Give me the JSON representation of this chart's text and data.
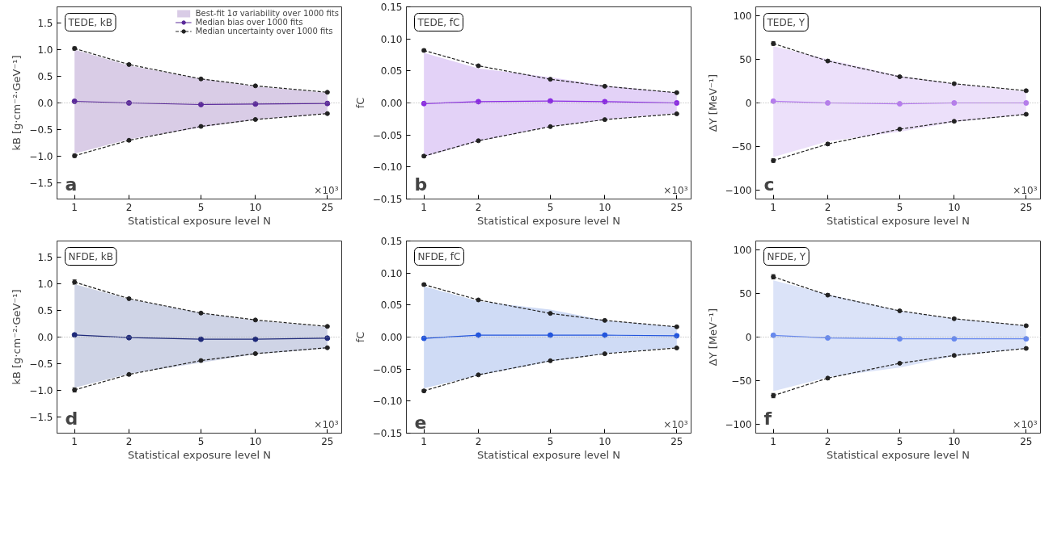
{
  "chart_data": [
    {
      "type": "line",
      "grid": false,
      "legend": "top right",
      "log": "x",
      "marker": "circle",
      "xlabel": "Statistical exposure level N",
      "ylabel": "kB [g·cm⁻²·GeV⁻¹]",
      "annotations": [
        "TEDE, kB",
        "a",
        "×10³"
      ],
      "x": [
        1,
        2,
        5,
        10,
        25
      ],
      "xlim": [
        0.8,
        30
      ],
      "xticks": [
        1,
        2,
        5,
        10,
        25
      ],
      "ylim": [
        -1.8,
        1.8
      ],
      "yticks": [
        {
          "value": -1.5,
          "label": "−1.5"
        },
        {
          "value": -1.0,
          "label": "−1.0"
        },
        {
          "value": -0.5,
          "label": "−0.5"
        },
        {
          "value": 0,
          "label": "0.0"
        },
        0.5,
        {
          "value": 1,
          "label": "1.0"
        },
        1.5
      ],
      "ref_lines": [
        {
          "axis": "y",
          "value": 0,
          "color": "#aaaaaa",
          "line_style": "dotted"
        }
      ],
      "series": [
        {
          "name": "Best-fit 1σ variability over 1000 fits",
          "type": "area",
          "color": "#d9cce6",
          "values": [
            null,
            null,
            null,
            null,
            null
          ],
          "lower": [
            -0.95,
            -0.68,
            -0.46,
            -0.31,
            -0.2
          ],
          "upper": [
            1.0,
            0.7,
            0.45,
            0.31,
            0.19
          ]
        },
        {
          "name": "Median bias over 1000 fits",
          "color": "#5b2a9a",
          "line_style": "solid",
          "values": [
            0.03,
            0.0,
            -0.03,
            -0.02,
            -0.01
          ]
        },
        {
          "name": "Median uncertainty over 1000 fits",
          "color": "#222222",
          "line_style": "dashed",
          "values": [
            1.02,
            0.72,
            0.45,
            0.32,
            0.2
          ],
          "errors": [
            0.03,
            0.02,
            0.01,
            0.01,
            0.01
          ]
        },
        {
          "color": "#222222",
          "line_style": "dashed",
          "values": [
            -0.99,
            -0.7,
            -0.44,
            -0.31,
            -0.2
          ],
          "errors": [
            0.03,
            0.02,
            0.01,
            0.01,
            0.01
          ]
        }
      ]
    },
    {
      "type": "line",
      "grid": false,
      "log": "x",
      "marker": "circle",
      "xlabel": "Statistical exposure level N",
      "ylabel": "fC",
      "annotations": [
        "TEDE, fC",
        "b",
        "×10³"
      ],
      "x": [
        1,
        2,
        5,
        10,
        25
      ],
      "xlim": [
        0.8,
        30
      ],
      "xticks": [
        1,
        2,
        5,
        10,
        25
      ],
      "ylim": [
        -0.15,
        0.15
      ],
      "yticks": [
        {
          "value": -0.15,
          "label": "−0.15"
        },
        {
          "value": -0.1,
          "label": "−0.10"
        },
        {
          "value": -0.05,
          "label": "−0.05"
        },
        {
          "value": 0,
          "label": "0.00"
        },
        0.05,
        {
          "value": 0.1,
          "label": "0.10"
        },
        0.15
      ],
      "ref_lines": [
        {
          "axis": "y",
          "value": 0,
          "color": "#aaaaaa",
          "line_style": "dotted"
        }
      ],
      "series": [
        {
          "type": "area",
          "color": "#e3d2f7",
          "values": [
            null,
            null,
            null,
            null,
            null
          ],
          "lower": [
            -0.084,
            -0.06,
            -0.037,
            -0.026,
            -0.016
          ],
          "upper": [
            0.078,
            0.054,
            0.04,
            0.027,
            0.016
          ]
        },
        {
          "color": "#8a2be2",
          "line_style": "solid",
          "values": [
            -0.001,
            0.002,
            0.003,
            0.002,
            0.0
          ]
        },
        {
          "color": "#222222",
          "line_style": "dashed",
          "values": [
            0.082,
            0.058,
            0.037,
            0.026,
            0.016
          ],
          "errors": [
            0.002,
            0.001,
            0.001,
            0.001,
            0.001
          ]
        },
        {
          "color": "#222222",
          "line_style": "dashed",
          "values": [
            -0.083,
            -0.059,
            -0.037,
            -0.026,
            -0.017
          ],
          "errors": [
            0.002,
            0.001,
            0.001,
            0.001,
            0.001
          ]
        }
      ]
    },
    {
      "type": "line",
      "grid": false,
      "log": "x",
      "marker": "circle",
      "xlabel": "Statistical exposure level N",
      "ylabel": "ΔY [MeV⁻¹]",
      "annotations": [
        "TEDE, Y",
        "c",
        "×10³"
      ],
      "x": [
        1,
        2,
        5,
        10,
        25
      ],
      "xlim": [
        0.8,
        30
      ],
      "xticks": [
        1,
        2,
        5,
        10,
        25
      ],
      "ylim": [
        -110,
        110
      ],
      "yticks": [
        {
          "value": -100,
          "label": "−100"
        },
        {
          "value": -50,
          "label": "−50"
        },
        0,
        50,
        100
      ],
      "ref_lines": [
        {
          "axis": "y",
          "value": 0,
          "color": "#aaaaaa",
          "line_style": "dotted"
        }
      ],
      "series": [
        {
          "type": "area",
          "color": "#ece0fa",
          "values": [
            null,
            null,
            null,
            null,
            null
          ],
          "lower": [
            -62,
            -44,
            -33,
            -22,
            -13
          ],
          "upper": [
            65,
            50,
            31,
            22,
            13
          ]
        },
        {
          "color": "#b57bee",
          "line_style": "solid",
          "values": [
            2,
            0,
            -1,
            0,
            0
          ]
        },
        {
          "color": "#222222",
          "line_style": "dashed",
          "values": [
            68,
            48,
            30,
            22,
            14
          ],
          "errors": [
            2,
            1.5,
            1,
            1,
            1
          ]
        },
        {
          "color": "#222222",
          "line_style": "dashed",
          "values": [
            -66,
            -47,
            -30,
            -21,
            -13
          ],
          "errors": [
            2,
            1.5,
            1,
            1,
            1
          ]
        }
      ]
    },
    {
      "type": "line",
      "grid": false,
      "log": "x",
      "marker": "circle",
      "xlabel": "Statistical exposure level N",
      "ylabel": "kB [g·cm⁻²·GeV⁻¹]",
      "annotations": [
        "NFDE, kB",
        "d",
        "×10³"
      ],
      "x": [
        1,
        2,
        5,
        10,
        25
      ],
      "xlim": [
        0.8,
        30
      ],
      "xticks": [
        1,
        2,
        5,
        10,
        25
      ],
      "ylim": [
        -1.8,
        1.8
      ],
      "yticks": [
        {
          "value": -1.5,
          "label": "−1.5"
        },
        {
          "value": -1.0,
          "label": "−1.0"
        },
        {
          "value": -0.5,
          "label": "−0.5"
        },
        {
          "value": 0,
          "label": "0.0"
        },
        0.5,
        {
          "value": 1,
          "label": "1.0"
        },
        1.5
      ],
      "ref_lines": [
        {
          "axis": "y",
          "value": 0,
          "color": "#aaaaaa",
          "line_style": "dotted"
        }
      ],
      "series": [
        {
          "type": "area",
          "color": "#cfd4e6",
          "values": [
            null,
            null,
            null,
            null,
            null
          ],
          "lower": [
            -0.95,
            -0.69,
            -0.48,
            -0.32,
            -0.21
          ],
          "upper": [
            0.99,
            0.71,
            0.45,
            0.31,
            0.19
          ]
        },
        {
          "color": "#1f2a7a",
          "line_style": "solid",
          "values": [
            0.04,
            -0.01,
            -0.04,
            -0.04,
            -0.02
          ]
        },
        {
          "color": "#222222",
          "line_style": "dashed",
          "values": [
            1.03,
            0.72,
            0.45,
            0.32,
            0.2
          ],
          "errors": [
            0.04,
            0.02,
            0.01,
            0.01,
            0.01
          ]
        },
        {
          "color": "#222222",
          "line_style": "dashed",
          "values": [
            -0.99,
            -0.7,
            -0.44,
            -0.31,
            -0.2
          ],
          "errors": [
            0.04,
            0.02,
            0.01,
            0.01,
            0.01
          ]
        }
      ]
    },
    {
      "type": "line",
      "grid": false,
      "log": "x",
      "marker": "circle",
      "xlabel": "Statistical exposure level N",
      "ylabel": "fC",
      "annotations": [
        "NFDE, fC",
        "e",
        "×10³"
      ],
      "x": [
        1,
        2,
        5,
        10,
        25
      ],
      "xlim": [
        0.8,
        30
      ],
      "xticks": [
        1,
        2,
        5,
        10,
        25
      ],
      "ylim": [
        -0.15,
        0.15
      ],
      "yticks": [
        {
          "value": -0.15,
          "label": "−0.15"
        },
        {
          "value": -0.1,
          "label": "−0.10"
        },
        {
          "value": -0.05,
          "label": "−0.05"
        },
        {
          "value": 0,
          "label": "0.00"
        },
        0.05,
        {
          "value": 0.1,
          "label": "0.10"
        },
        0.15
      ],
      "ref_lines": [
        {
          "axis": "y",
          "value": 0,
          "color": "#aaaaaa",
          "line_style": "dotted"
        }
      ],
      "series": [
        {
          "type": "area",
          "color": "#cfdbf5",
          "values": [
            null,
            null,
            null,
            null,
            null
          ],
          "lower": [
            -0.08,
            -0.06,
            -0.038,
            -0.026,
            -0.016
          ],
          "upper": [
            0.079,
            0.056,
            0.043,
            0.026,
            0.016
          ]
        },
        {
          "color": "#2255dd",
          "line_style": "solid",
          "values": [
            -0.002,
            0.003,
            0.003,
            0.003,
            0.002
          ]
        },
        {
          "color": "#222222",
          "line_style": "dashed",
          "values": [
            0.082,
            0.058,
            0.037,
            0.026,
            0.016
          ],
          "errors": [
            0.002,
            0.001,
            0.001,
            0.001,
            0.001
          ]
        },
        {
          "color": "#222222",
          "line_style": "dashed",
          "values": [
            -0.084,
            -0.059,
            -0.037,
            -0.026,
            -0.017
          ],
          "errors": [
            0.002,
            0.001,
            0.001,
            0.001,
            0.001
          ]
        }
      ]
    },
    {
      "type": "line",
      "grid": false,
      "log": "x",
      "marker": "circle",
      "xlabel": "Statistical exposure level N",
      "ylabel": "ΔY [MeV⁻¹]",
      "annotations": [
        "NFDE, Y",
        "f",
        "×10³"
      ],
      "x": [
        1,
        2,
        5,
        10,
        25
      ],
      "xlim": [
        0.8,
        30
      ],
      "xticks": [
        1,
        2,
        5,
        10,
        25
      ],
      "ylim": [
        -110,
        110
      ],
      "yticks": [
        {
          "value": -100,
          "label": "−100"
        },
        {
          "value": -50,
          "label": "−50"
        },
        0,
        50,
        100
      ],
      "ref_lines": [
        {
          "axis": "y",
          "value": 0,
          "color": "#aaaaaa",
          "line_style": "dotted"
        }
      ],
      "series": [
        {
          "type": "area",
          "color": "#dbe3f8",
          "values": [
            null,
            null,
            null,
            null,
            null
          ],
          "lower": [
            -62,
            -46,
            -35,
            -22,
            -13
          ],
          "upper": [
            65,
            49,
            30,
            21,
            13
          ]
        },
        {
          "color": "#6688ee",
          "line_style": "solid",
          "values": [
            2,
            -1,
            -2,
            -2,
            -2
          ]
        },
        {
          "color": "#222222",
          "line_style": "dashed",
          "values": [
            69,
            48,
            30,
            21,
            13
          ],
          "errors": [
            2.5,
            1.5,
            1,
            1,
            1
          ]
        },
        {
          "color": "#222222",
          "line_style": "dashed",
          "values": [
            -67,
            -47,
            -30,
            -21,
            -13
          ],
          "errors": [
            2.5,
            1.5,
            1,
            1,
            1
          ]
        }
      ]
    }
  ]
}
